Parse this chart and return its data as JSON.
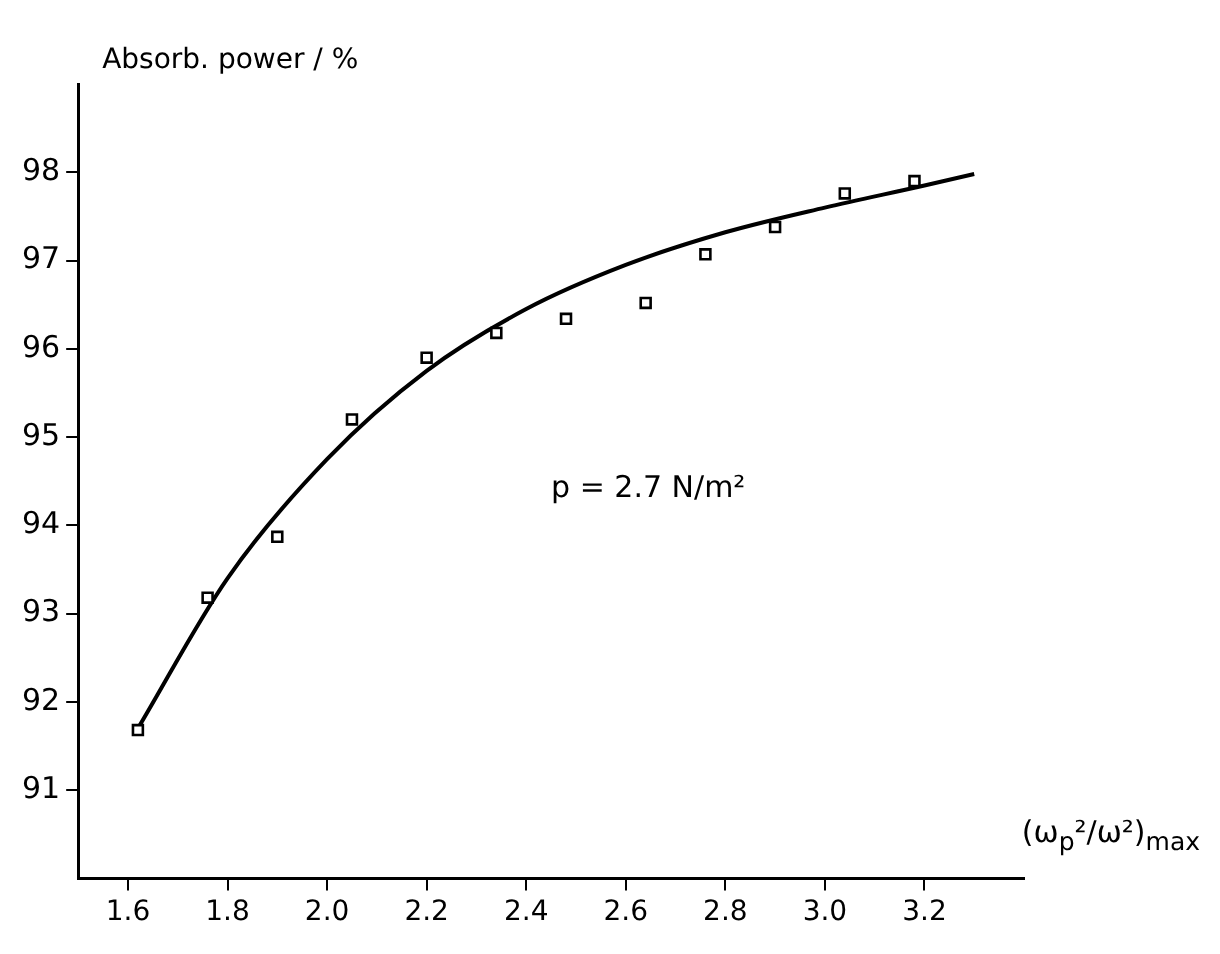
{
  "chart_data": {
    "type": "scatter",
    "ylabel": "Absorb. power / %",
    "xlabel": "(ω$_{p}$²/ω²)$_{max}$",
    "annotations": [
      "p = 2.7 N/m²"
    ],
    "series": [
      {
        "color": "#000000",
        "marker": "square",
        "x": [
          1.62,
          1.76,
          1.9,
          2.05,
          2.2,
          2.34,
          2.48,
          2.64,
          2.76,
          2.9,
          3.04,
          3.18
        ],
        "values": [
          91.68,
          93.18,
          93.87,
          95.2,
          95.9,
          96.18,
          96.34,
          96.52,
          97.07,
          97.38,
          97.76,
          97.9
        ]
      },
      {
        "type": "line",
        "color": "#000000",
        "marker": "none",
        "x": [
          1.62,
          1.8,
          2.0,
          2.2,
          2.4,
          2.6,
          2.8,
          3.0,
          3.2,
          3.3
        ],
        "values": [
          91.7,
          93.4,
          94.75,
          95.75,
          96.45,
          96.95,
          97.32,
          97.6,
          97.85,
          97.98
        ]
      }
    ],
    "xlim": [
      1.5,
      3.4
    ],
    "xticks": [
      1.6,
      1.8,
      {
        "value": 2,
        "label": "2.0"
      },
      2.2,
      2.4,
      2.6,
      2.8,
      {
        "value": 3,
        "label": "3.0"
      },
      3.2
    ],
    "ylim": [
      90,
      99
    ],
    "yticks": [
      91,
      92,
      93,
      94,
      95,
      96,
      97,
      98
    ],
    "grid": false,
    "legend": false
  }
}
